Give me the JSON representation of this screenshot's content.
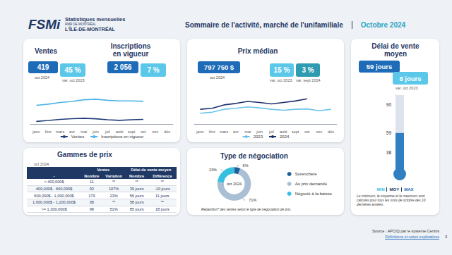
{
  "header": {
    "brand": "FSMi",
    "subtitle": "Statistiques mensuelles",
    "region_top": "RMR DE MONTRÉAL",
    "region": "L'ÎLE-DE-MONTRÉAL",
    "title": "Sommaire de l'activité, marché de l'unifamiliale",
    "period": "Octobre 2024"
  },
  "kpis": {
    "ventes": {
      "title": "Ventes",
      "value": "419",
      "value_label": "oct 2024",
      "change": "45 %",
      "change_label": "var. oct 2023"
    },
    "inscriptions": {
      "title": "Inscriptions en vigueur",
      "value": "2 056",
      "change": "7 %"
    },
    "prix": {
      "title": "Prix médian",
      "value": "797 750 $",
      "value_label": "oct 2024",
      "change": "15 %",
      "change_label": "var. oct 2023",
      "change2": "3 %",
      "change2_label": "var. sept 2024"
    },
    "delai": {
      "title": "Délai de vente moyen",
      "value": "59 jours",
      "change": "8 jours",
      "change_label": "var. oct 2023",
      "scale": [
        "MIN",
        "MOY",
        "MAX"
      ],
      "note": "Le minimum, la moyenne et le maximum sont calculés pour tous les mois de  octobre des 10 dernières années."
    }
  },
  "table": {
    "title": "Gammes de prix",
    "period": "oct 2024",
    "groups": [
      "Ventes",
      "Délai de vente moyen"
    ],
    "columns": [
      "-",
      "Nombre",
      "Variation",
      "Nombre",
      "Différence"
    ],
    "rows": [
      [
        "< 400,000$",
        "11",
        "**",
        "**",
        "**"
      ],
      [
        "400,000$ - 600,000$",
        "93",
        "107%",
        "39 jours",
        "-10 jours"
      ],
      [
        "600,000$ - 1,000,000$",
        "179",
        "23%",
        "56 jours",
        "11 jours"
      ],
      [
        "1,000,000$ - 1,200,000$",
        "38",
        "**",
        "58 jours",
        "**"
      ],
      [
        ">= 1,200,000$",
        "98",
        "51%",
        "85 jours",
        "18 jours"
      ]
    ]
  },
  "chart_data": [
    {
      "type": "line",
      "categories": [
        "janv",
        "févr",
        "mars",
        "avr",
        "mai",
        "juin",
        "juil",
        "août",
        "sept",
        "oct",
        "nov",
        "déc"
      ],
      "series": [
        {
          "name": "Ventes",
          "color": "#1f3d7a",
          "values": [
            230,
            320,
            420,
            480,
            520,
            470,
            380,
            330,
            380,
            419,
            null,
            null
          ]
        },
        {
          "name": "Inscriptions en vigueur",
          "color": "#4fb3e3",
          "values": [
            1700,
            1800,
            1950,
            2050,
            2200,
            2250,
            2150,
            2100,
            2100,
            2056,
            null,
            null
          ]
        }
      ],
      "ylim": [
        0,
        3200
      ],
      "grid": false,
      "legend": "bottom",
      "tick_labels": "x"
    },
    {
      "type": "line",
      "categories": [
        "janv",
        "févr",
        "mars",
        "avr",
        "mai",
        "juin",
        "juil",
        "août",
        "sept",
        "oct",
        "nov",
        "déc"
      ],
      "series": [
        {
          "name": "2023",
          "color": "#6cc3ea",
          "values": [
            650000,
            660000,
            690000,
            700000,
            715000,
            705000,
            690000,
            680000,
            690000,
            694000,
            675000,
            690000
          ]
        },
        {
          "name": "2024",
          "color": "#1f2f6b",
          "values": [
            690000,
            700000,
            735000,
            750000,
            770000,
            760000,
            745000,
            760000,
            775000,
            797750,
            null,
            null
          ]
        }
      ],
      "ylim": [
        540000,
        900000
      ],
      "grid": false,
      "legend": "bottom",
      "tick_labels": "x"
    },
    {
      "type": "pie",
      "title": "Type de négociation",
      "center_label": "oct 2024",
      "categories": [
        "Surenchère",
        "Au prix demandé",
        "Négocié à la baisse"
      ],
      "values": [
        6,
        71,
        23
      ],
      "value_labels": [
        "6%",
        "71%",
        "23%"
      ],
      "colors": [
        "#1f5f99",
        "#a9bfd3",
        "#36c0e0"
      ],
      "legend": "right",
      "data_labels": true,
      "note": "Répartition* des ventes selon le type de négociation de prix."
    },
    {
      "type": "bar",
      "categories": [
        null
      ],
      "values": [
        59
      ],
      "color": "#2f7fc1",
      "ylim": [
        20,
        100
      ],
      "yticks": [
        38,
        59,
        90
      ],
      "grid": false,
      "tick_labels": "y"
    }
  ],
  "footer": {
    "source": "Source : APCIQ par le système Centris",
    "link": "Définitions et notes explicatives",
    "page": "3"
  }
}
